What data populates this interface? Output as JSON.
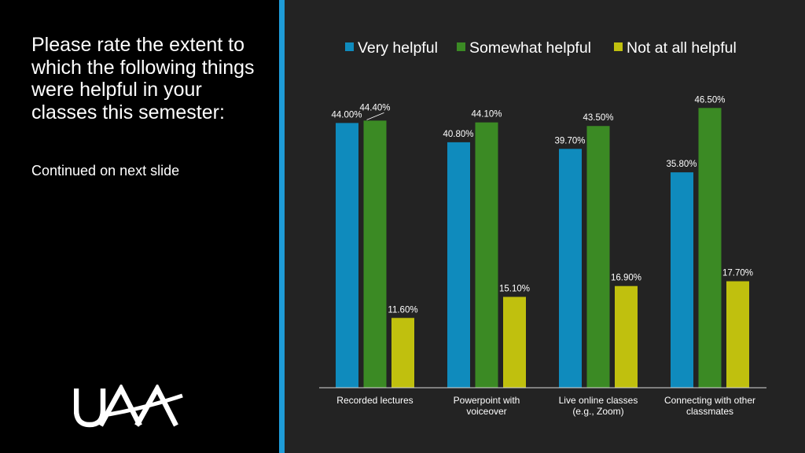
{
  "slide": {
    "title": "Please rate the extent to which the following things were helpful in your classes this semester:",
    "note": "Continued on next slide",
    "logo_text": "UAA"
  },
  "colors": {
    "left_panel": "#000000",
    "accent": "#1e9bd7",
    "background": "#232323",
    "text": "#ffffff"
  },
  "chart_data": {
    "type": "bar",
    "title": "",
    "xlabel": "",
    "ylabel": "",
    "ylim": [
      0,
      50
    ],
    "grid": false,
    "legend_position": "top",
    "categories": [
      [
        "Recorded lectures"
      ],
      [
        "Powerpoint with",
        "voiceover"
      ],
      [
        "Live online classes",
        "(e.g., Zoom)"
      ],
      [
        "Connecting with other",
        "classmates"
      ]
    ],
    "series": [
      {
        "name": "Very helpful",
        "color": "#0f8bbd",
        "values": [
          44.0,
          40.8,
          39.7,
          35.8
        ],
        "labels": [
          "44.00%",
          "40.80%",
          "39.70%",
          "35.80%"
        ]
      },
      {
        "name": "Somewhat helpful",
        "color": "#3b8a24",
        "values": [
          44.4,
          44.1,
          43.5,
          46.5
        ],
        "labels": [
          "44.40%",
          "44.10%",
          "43.50%",
          "46.50%"
        ]
      },
      {
        "name": "Not at all helpful",
        "color": "#c0c00e",
        "values": [
          11.6,
          15.1,
          16.9,
          17.7
        ],
        "labels": [
          "11.60%",
          "15.10%",
          "16.90%",
          "17.70%"
        ]
      }
    ]
  }
}
